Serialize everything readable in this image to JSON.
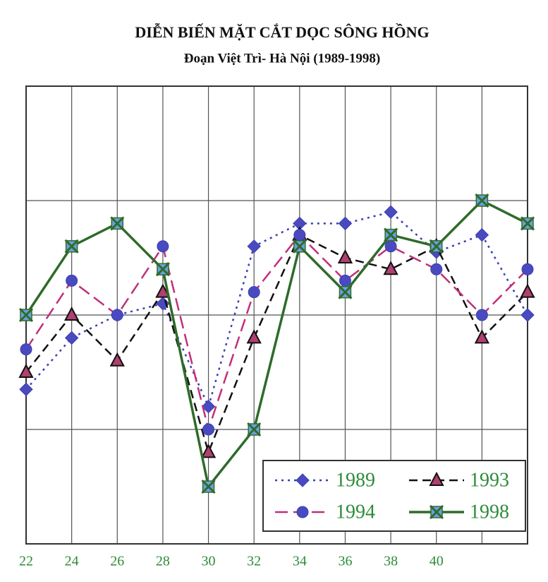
{
  "chart_data": {
    "type": "line",
    "title": "DIỄN BIẾN MẶT CẮT DỌC SÔNG HỒNG",
    "subtitle": "Đoạn Việt Trì- Hà Nội (1989-1998)",
    "categories": [
      "22",
      "24",
      "26",
      "28",
      "30",
      "32",
      "34",
      "36",
      "38",
      "40",
      null,
      null
    ],
    "series": [
      {
        "name": "1989",
        "color": "#3a3fb0",
        "dash": "3,6",
        "marker": "diamond",
        "values": [
          1.35,
          1.8,
          2.0,
          2.1,
          1.2,
          2.6,
          2.8,
          2.8,
          2.9,
          2.55,
          2.7,
          2.0
        ]
      },
      {
        "name": "1993",
        "color": "#111111",
        "dash": "12,7",
        "marker": "triangle",
        "values": [
          1.5,
          2.0,
          1.6,
          2.2,
          0.8,
          1.8,
          2.7,
          2.5,
          2.4,
          2.6,
          1.8,
          2.2
        ]
      },
      {
        "name": "1994",
        "color": "#c0307a",
        "dash": "18,8",
        "marker": "circle",
        "values": [
          1.7,
          2.3,
          2.0,
          2.6,
          1.0,
          2.2,
          2.7,
          2.3,
          2.6,
          2.4,
          2.0,
          2.4
        ]
      },
      {
        "name": "1998",
        "color": "#2f6b2a",
        "dash": "",
        "marker": "xsquare",
        "values": [
          2.0,
          2.6,
          2.8,
          2.4,
          0.5,
          1.0,
          2.6,
          2.2,
          2.7,
          2.6,
          3.0,
          2.8
        ]
      }
    ],
    "ylim": [
      0,
      4
    ],
    "yticks": [
      0,
      1,
      2,
      3,
      4
    ],
    "grid": true
  }
}
